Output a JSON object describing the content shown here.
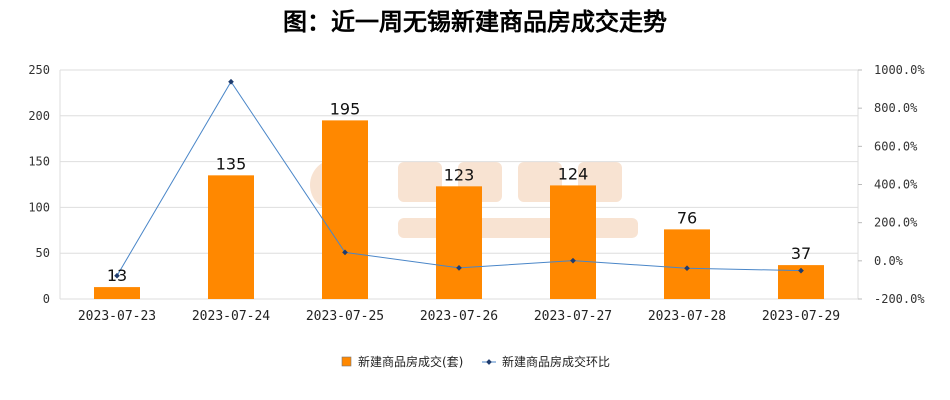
{
  "chart_data": {
    "type": "bar",
    "title": "图：近一周无锡新建商品房成交走势",
    "categories": [
      "2023-07-23",
      "2023-07-24",
      "2023-07-25",
      "2023-07-26",
      "2023-07-27",
      "2023-07-28",
      "2023-07-29"
    ],
    "series": [
      {
        "name": "新建商品房成交(套)",
        "type": "bar",
        "axis": "left",
        "color": "#ff8800",
        "values": [
          13,
          135,
          195,
          123,
          124,
          76,
          37
        ]
      },
      {
        "name": "新建商品房成交环比",
        "type": "line",
        "axis": "right",
        "color": "#4a86c8",
        "unit": "%",
        "values": [
          -78.0,
          938.5,
          44.4,
          -36.9,
          0.8,
          -38.7,
          -51.3
        ]
      }
    ],
    "left_axis": {
      "ylim": [
        0,
        250
      ],
      "ticks": [
        "0",
        "50",
        "100",
        "150",
        "200",
        "250"
      ]
    },
    "right_axis": {
      "ylim": [
        -200,
        1000
      ],
      "ticks": [
        "-200.0%",
        "0.0%",
        "200.0%",
        "400.0%",
        "600.0%",
        "800.0%",
        "1000.0%"
      ]
    },
    "grid": true,
    "legend_position": "bottom",
    "watermark": "诸葛找房 zhuge.com"
  }
}
